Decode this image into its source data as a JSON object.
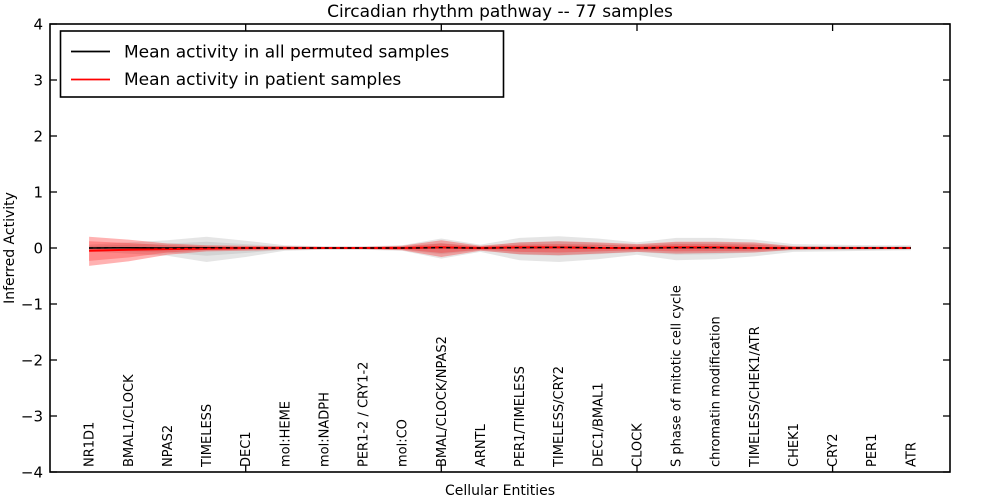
{
  "title": "Circadian rhythm pathway -- 77 samples",
  "legend": {
    "position": "upper left",
    "entries": [
      {
        "label": "Mean activity in all permuted samples",
        "color": "#000000"
      },
      {
        "label": "Mean activity in patient samples",
        "color": "#ff0000"
      }
    ]
  },
  "chart_data": {
    "type": "line",
    "title": "Circadian rhythm pathway -- 77 samples",
    "xlabel": "Cellular Entities",
    "ylabel": "Inferred Activity",
    "ylim": [
      -4,
      4
    ],
    "xlim": [
      0,
      23
    ],
    "grid": false,
    "legend_position": "upper left",
    "yticks": [
      {
        "value": 4,
        "label": "4"
      },
      {
        "value": 3,
        "label": "3"
      },
      {
        "value": 2,
        "label": "2"
      },
      {
        "value": 1,
        "label": "1"
      },
      {
        "value": 0,
        "label": "0"
      },
      {
        "value": -1,
        "label": "−1"
      },
      {
        "value": -2,
        "label": "−2"
      },
      {
        "value": -3,
        "label": "−3"
      },
      {
        "value": -4,
        "label": "−4"
      }
    ],
    "xtick_positions": [
      5,
      10,
      15,
      20
    ],
    "categories": [
      "NR1D1",
      "BMAL1/CLOCK",
      "NPAS2",
      "TIMELESS",
      "DEC1",
      "mol:HEME",
      "mol:NADPH",
      "PER1-2 / CRY1-2",
      "mol:CO",
      "BMAL/CLOCK/NPAS2",
      "ARNTL",
      "PER1/TIMELESS",
      "TIMELESS/CRY2",
      "DEC1/BMAL1",
      "CLOCK",
      "S phase of mitotic cell cycle",
      "chromatin modification",
      "TIMELESS/CHEK1/ATR",
      "CHEK1",
      "CRY2",
      "PER1",
      "ATR"
    ],
    "series": [
      {
        "name": "Mean activity in all permuted samples",
        "color": "#000000",
        "style": "solid_with_dashed_overlay",
        "width": 1.5,
        "values": [
          0,
          0.005,
          0,
          0.005,
          0,
          0,
          0,
          0,
          0,
          0.005,
          0,
          0.005,
          0.01,
          0.005,
          0,
          0.005,
          0.005,
          0,
          0,
          0,
          0,
          0
        ]
      },
      {
        "name": "Mean activity in patient samples",
        "color": "#ff0000",
        "style": "solid",
        "width": 2,
        "values": [
          -0.05,
          -0.03,
          -0.02,
          -0.01,
          0,
          0,
          0,
          0,
          0,
          0.01,
          0,
          0.01,
          0.01,
          0,
          0,
          0.01,
          0.01,
          0,
          0,
          0,
          0,
          0
        ]
      }
    ],
    "bands": [
      {
        "name": "permuted-std-outer",
        "color": "rgba(0,0,0,0.10)",
        "upper": [
          0.06,
          0.1,
          0.14,
          0.2,
          0.13,
          0.05,
          0.03,
          0.03,
          0.05,
          0.17,
          0.06,
          0.18,
          0.21,
          0.17,
          0.1,
          0.18,
          0.18,
          0.15,
          0.07,
          0.06,
          0.05,
          0.05
        ],
        "lower": [
          -0.06,
          -0.1,
          -0.14,
          -0.25,
          -0.16,
          -0.05,
          -0.03,
          -0.03,
          -0.05,
          -0.19,
          -0.07,
          -0.22,
          -0.25,
          -0.2,
          -0.12,
          -0.22,
          -0.2,
          -0.15,
          -0.07,
          -0.06,
          -0.05,
          -0.04
        ]
      },
      {
        "name": "permuted-std-inner",
        "color": "rgba(0,0,0,0.08)",
        "upper": [
          0.03,
          0.06,
          0.08,
          0.11,
          0.07,
          0.03,
          0.02,
          0.02,
          0.03,
          0.09,
          0.03,
          0.1,
          0.12,
          0.09,
          0.06,
          0.1,
          0.1,
          0.08,
          0.04,
          0.03,
          0.03,
          0.03
        ],
        "lower": [
          -0.03,
          -0.06,
          -0.08,
          -0.14,
          -0.09,
          -0.03,
          -0.02,
          -0.02,
          -0.03,
          -0.11,
          -0.04,
          -0.12,
          -0.14,
          -0.11,
          -0.07,
          -0.12,
          -0.11,
          -0.08,
          -0.04,
          -0.03,
          -0.03,
          -0.02
        ]
      },
      {
        "name": "patient-std-outer",
        "color": "rgba(255,0,0,0.30)",
        "upper": [
          0.2,
          0.15,
          0.08,
          0.05,
          0.04,
          0.03,
          0.02,
          0.02,
          0.04,
          0.14,
          0.04,
          0.1,
          0.12,
          0.1,
          0.07,
          0.11,
          0.11,
          0.1,
          0.03,
          0.025,
          0.02,
          0.02
        ],
        "lower": [
          -0.32,
          -0.24,
          -0.12,
          -0.06,
          -0.05,
          -0.03,
          -0.02,
          -0.02,
          -0.04,
          -0.16,
          -0.05,
          -0.11,
          -0.13,
          -0.1,
          -0.07,
          -0.1,
          -0.09,
          -0.08,
          -0.03,
          -0.025,
          -0.02,
          -0.02
        ]
      },
      {
        "name": "patient-std-inner",
        "color": "rgba(255,0,0,0.24)",
        "upper": [
          0.12,
          0.09,
          0.05,
          0.03,
          0.025,
          0.02,
          0.012,
          0.012,
          0.025,
          0.08,
          0.025,
          0.06,
          0.07,
          0.06,
          0.04,
          0.07,
          0.07,
          0.06,
          0.02,
          0.015,
          0.012,
          0.012
        ],
        "lower": [
          -0.23,
          -0.17,
          -0.08,
          -0.04,
          -0.03,
          -0.02,
          -0.012,
          -0.012,
          -0.025,
          -0.09,
          -0.03,
          -0.07,
          -0.08,
          -0.06,
          -0.04,
          -0.06,
          -0.055,
          -0.05,
          -0.02,
          -0.015,
          -0.012,
          -0.012
        ]
      }
    ]
  }
}
